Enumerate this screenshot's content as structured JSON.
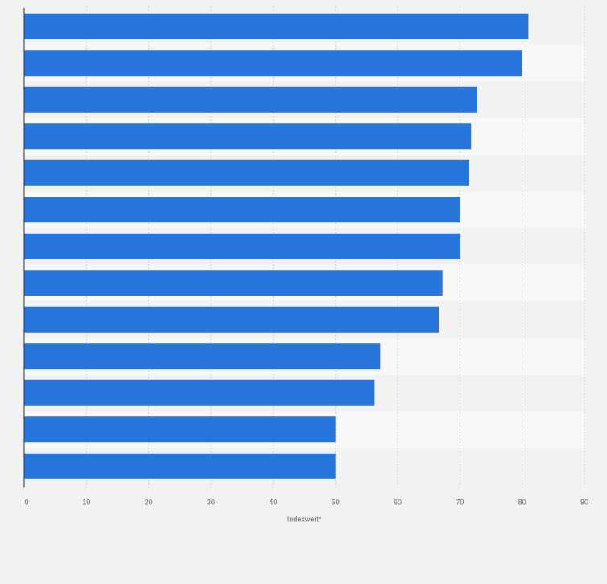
{
  "chart_data": {
    "type": "bar",
    "orientation": "horizontal",
    "categories": [
      "",
      "",
      "",
      "",
      "",
      "",
      "",
      "",
      "",
      "",
      "",
      "",
      ""
    ],
    "values": [
      81,
      80,
      72.8,
      71.8,
      71.5,
      70.1,
      70.1,
      67.2,
      66.6,
      57.2,
      56.3,
      50,
      50
    ],
    "xlabel": "Indexwert*",
    "ylabel": "",
    "xlim": [
      0,
      90
    ],
    "xticks": [
      "0",
      "10",
      "20",
      "30",
      "40",
      "50",
      "60",
      "70",
      "80",
      "90"
    ],
    "grid": true,
    "bar_color": "#2776dc",
    "band_colors": [
      "#f2f2f2",
      "#f8f8f8"
    ]
  }
}
